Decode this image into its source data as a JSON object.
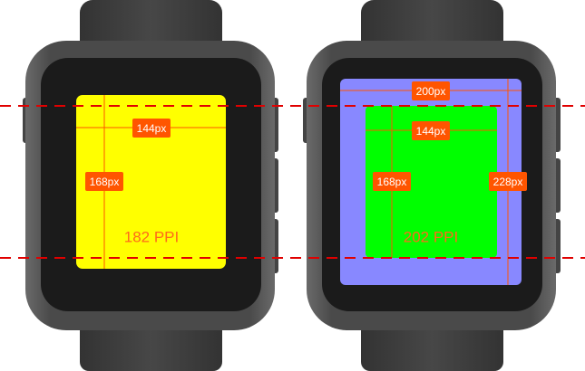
{
  "colors": {
    "strap": "#3c3c3c",
    "body": "#555555",
    "bezel": "#1b1b1b",
    "screen_182": "#ffff00",
    "screen_202": "#00ff00",
    "screen_228": "#8888ff",
    "measure": "#ff5500",
    "guide": "#e00000"
  },
  "left_watch": {
    "width_label": "144px",
    "height_label": "168px",
    "ppi_label": "182 PPI"
  },
  "right_watch": {
    "outer_width_label": "200px",
    "outer_height_label": "228px",
    "inner_width_label": "144px",
    "inner_height_label": "168px",
    "ppi_label": "202 PPI"
  }
}
